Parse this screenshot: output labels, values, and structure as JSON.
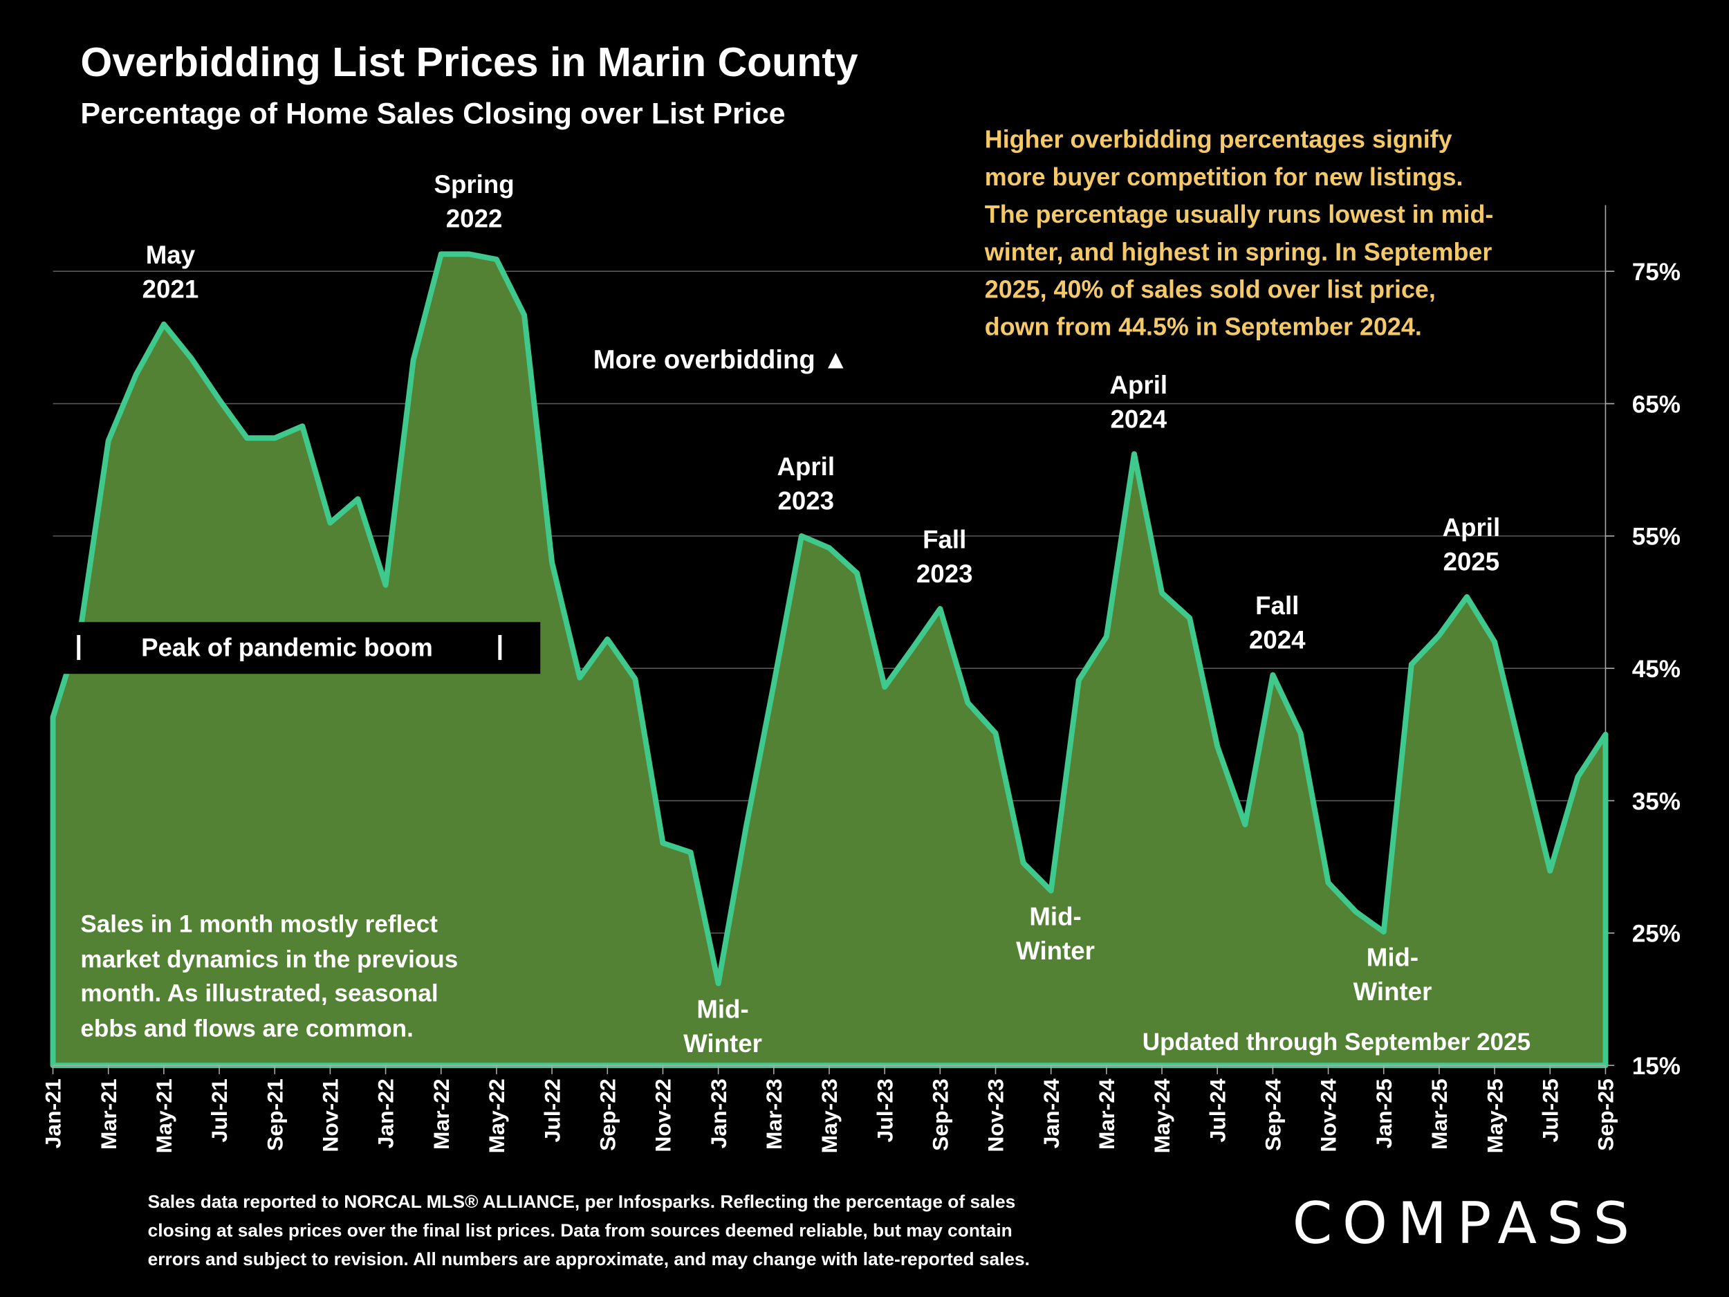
{
  "title": "Overbidding List Prices in Marin County",
  "subtitle": "Percentage of Home Sales Closing over List Price",
  "note_lines": [
    "Higher overbidding percentages signify",
    "more buyer competition for new listings.",
    "The percentage usually runs lowest in mid-",
    "winter, and highest in spring. In September",
    "2025, 40% of sales sold over list price,",
    "down from 44.5% in September 2024."
  ],
  "more_overbidding": "More overbidding ▲",
  "pandemic": {
    "label": "Peak of pandemic boom",
    "bracket": "|"
  },
  "low_note_lines": [
    "Sales in 1 month mostly reflect",
    "market dynamics in the previous",
    "month. As illustrated, seasonal",
    "ebbs and flows are common."
  ],
  "updated": "Updated through September 2025",
  "annotations": [
    {
      "lines": [
        "May",
        "2021"
      ],
      "month": "May-21",
      "pos": "above"
    },
    {
      "lines": [
        "Spring",
        "2022"
      ],
      "month": "Mar-22",
      "pos": "above"
    },
    {
      "lines": [
        "Mid-",
        "Winter"
      ],
      "month": "Jan-23",
      "pos": "below"
    },
    {
      "lines": [
        "April",
        "2023"
      ],
      "month": "Apr-23",
      "pos": "above"
    },
    {
      "lines": [
        "Fall",
        "2023"
      ],
      "month": "Sep-23",
      "pos": "above"
    },
    {
      "lines": [
        "Mid-",
        "Winter"
      ],
      "month": "Jan-24",
      "pos": "below"
    },
    {
      "lines": [
        "April",
        "2024"
      ],
      "month": "Apr-24",
      "pos": "above"
    },
    {
      "lines": [
        "Fall",
        "2024"
      ],
      "month": "Sep-24",
      "pos": "above"
    },
    {
      "lines": [
        "Mid-",
        "Winter"
      ],
      "month": "Jan-25",
      "pos": "below"
    },
    {
      "lines": [
        "April",
        "2025"
      ],
      "month": "Apr-25",
      "pos": "above"
    }
  ],
  "footer_lines": [
    "Sales data reported to NORCAL MLS® ALLIANCE, per Infosparks. Reflecting the percentage of sales",
    "closing at sales prices over the final list prices. Data from sources deemed reliable, but may contain",
    "errors and subject to revision. All numbers are approximate, and may change with late-reported sales."
  ],
  "logo": "COMPASS",
  "colors": {
    "fill": "#548235",
    "line": "#3fc98c",
    "note": "#f4c96a",
    "background": "#000000",
    "grid": "#595959"
  },
  "chart_data": {
    "type": "area",
    "title": "Overbidding List Prices in Marin County",
    "subtitle": "Percentage of Home Sales Closing over List Price",
    "ylim": [
      15,
      80
    ],
    "yticks": [
      15,
      25,
      35,
      45,
      55,
      65,
      75
    ],
    "ytick_labels": [
      "15%",
      "25%",
      "35%",
      "45%",
      "55%",
      "65%",
      "75%"
    ],
    "y_axis_side": "right",
    "grid": true,
    "x": [
      "Jan-21",
      "Feb-21",
      "Mar-21",
      "Apr-21",
      "May-21",
      "Jun-21",
      "Jul-21",
      "Aug-21",
      "Sep-21",
      "Oct-21",
      "Nov-21",
      "Dec-21",
      "Jan-22",
      "Feb-22",
      "Mar-22",
      "Apr-22",
      "May-22",
      "Jun-22",
      "Jul-22",
      "Aug-22",
      "Sep-22",
      "Oct-22",
      "Nov-22",
      "Dec-22",
      "Jan-23",
      "Feb-23",
      "Mar-23",
      "Apr-23",
      "May-23",
      "Jun-23",
      "Jul-23",
      "Aug-23",
      "Sep-23",
      "Oct-23",
      "Nov-23",
      "Dec-23",
      "Jan-24",
      "Feb-24",
      "Mar-24",
      "Apr-24",
      "May-24",
      "Jun-24",
      "Jul-24",
      "Aug-24",
      "Sep-24",
      "Oct-24",
      "Nov-24",
      "Dec-24",
      "Jan-25",
      "Feb-25",
      "Mar-25",
      "Apr-25",
      "May-25",
      "Jun-25",
      "Jul-25",
      "Aug-25",
      "Sep-25"
    ],
    "values": [
      41.3,
      48,
      62.2,
      67.2,
      71,
      68.4,
      65.3,
      62.4,
      62.4,
      63.3,
      56,
      57.8,
      51.3,
      68.3,
      76.3,
      76.3,
      75.9,
      71.7,
      53,
      44.3,
      47.2,
      44.2,
      31.8,
      31.1,
      21.2,
      33,
      43.8,
      55,
      54.1,
      52.2,
      43.6,
      46.5,
      49.5,
      42.4,
      40.1,
      30.3,
      28.2,
      44.1,
      47.4,
      61.2,
      50.7,
      48.8,
      39.1,
      33.2,
      44.5,
      40.1,
      28.8,
      26.6,
      25.1,
      45.3,
      47.5,
      50.4,
      47,
      38.3,
      29.7,
      36.8,
      40
    ],
    "xtick_every": 2
  }
}
